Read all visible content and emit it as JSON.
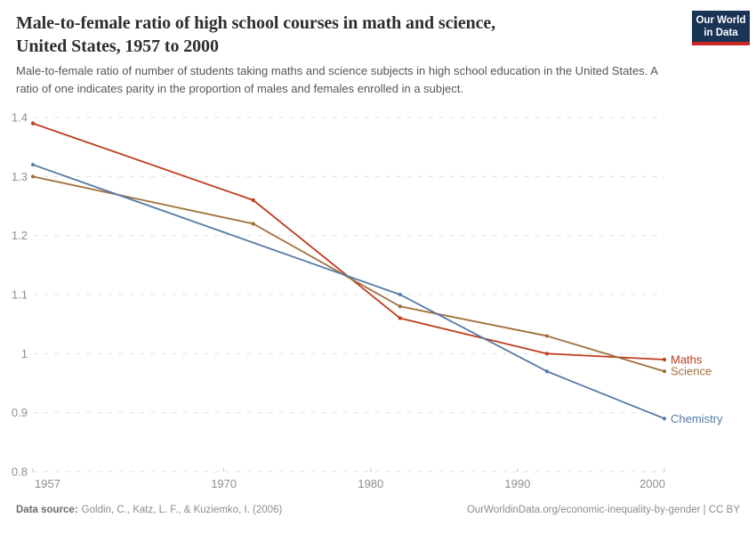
{
  "header": {
    "title_lines": [
      "Male-to-female ratio of high school courses in math and science,",
      "United States, 1957 to 2000"
    ],
    "subtitle": "Male-to-female ratio of number of students taking maths and science subjects in high school education in the United States. A ratio of one indicates parity in the proportion of males and females enrolled in a subject.",
    "logo": {
      "line1": "Our World",
      "line2": "in Data",
      "bg_color": "#1a3455",
      "stripe_color": "#cb2725"
    }
  },
  "chart_data": {
    "type": "line",
    "title": "Male-to-female ratio of high school courses in math and science, United States, 1957 to 2000",
    "xlabel": "",
    "ylabel": "",
    "xlim": [
      1957,
      2000
    ],
    "ylim": [
      0.8,
      1.4
    ],
    "grid": "horizontal-dashed",
    "legend_position": "end-of-line-labels",
    "x_ticks": [
      {
        "v": 1957,
        "label": "1957"
      },
      {
        "v": 1970,
        "label": "1970"
      },
      {
        "v": 1980,
        "label": "1980"
      },
      {
        "v": 1990,
        "label": "1990"
      },
      {
        "v": 2000,
        "label": "2000"
      }
    ],
    "y_ticks": [
      {
        "v": 0.8,
        "label": "0.8"
      },
      {
        "v": 0.9,
        "label": "0.9"
      },
      {
        "v": 1.0,
        "label": "1"
      },
      {
        "v": 1.1,
        "label": "1.1"
      },
      {
        "v": 1.2,
        "label": "1.2"
      },
      {
        "v": 1.3,
        "label": "1.3"
      },
      {
        "v": 1.4,
        "label": "1.4"
      }
    ],
    "points_format": "[year, male_to_female_ratio]",
    "series": [
      {
        "name": "Maths",
        "color": "#bd3d1c",
        "points": [
          [
            1957,
            1.39
          ],
          [
            1972,
            1.26
          ],
          [
            1982,
            1.06
          ],
          [
            1992,
            1.0
          ],
          [
            2000,
            0.99
          ]
        ]
      },
      {
        "name": "Science",
        "color": "#a06f3a",
        "points": [
          [
            1957,
            1.3
          ],
          [
            1972,
            1.22
          ],
          [
            1982,
            1.08
          ],
          [
            1992,
            1.03
          ],
          [
            2000,
            0.97
          ]
        ]
      },
      {
        "name": "Chemistry",
        "color": "#5479a7",
        "points": [
          [
            1957,
            1.32
          ],
          [
            1982,
            1.1
          ],
          [
            1992,
            0.97
          ],
          [
            2000,
            0.89
          ]
        ]
      }
    ]
  },
  "footer": {
    "source_label": "Data source:",
    "source_text": "Goldin, C., Katz, L. F., & Kuziemko, I. (2006)",
    "attribution": "OurWorldinData.org/economic-inequality-by-gender | CC BY"
  }
}
